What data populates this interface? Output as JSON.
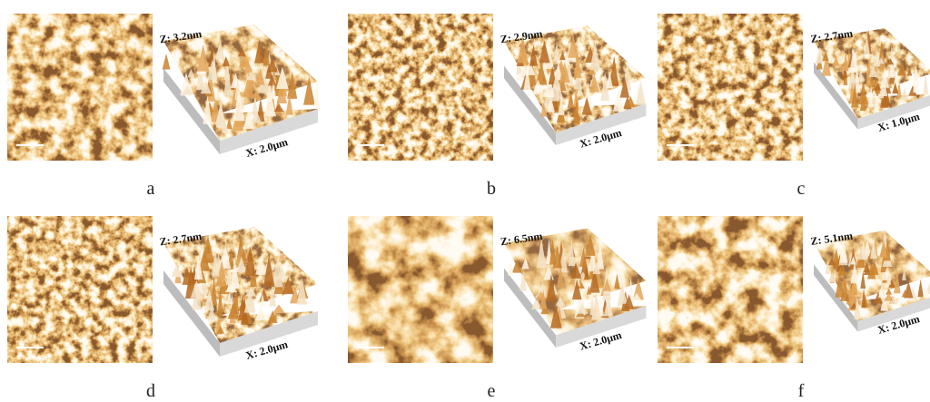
{
  "panels": [
    {
      "label": "a",
      "z_label": "Z: 3.2nm",
      "x_label": "X: 2.0μm"
    },
    {
      "label": "b",
      "z_label": "Z: 2.9nm",
      "x_label": "X: 2.0μm"
    },
    {
      "label": "c",
      "z_label": "Z: 2.7nm",
      "x_label": "X: 1.0μm"
    },
    {
      "label": "d",
      "z_label": "Z: 2.7nm",
      "x_label": "X: 2.0μm"
    },
    {
      "label": "e",
      "z_label": "Z: 6.5nm",
      "x_label": "X: 2.0μm"
    },
    {
      "label": "f",
      "z_label": "Z: 5.1nm",
      "x_label": "X: 2.0μm"
    }
  ]
}
